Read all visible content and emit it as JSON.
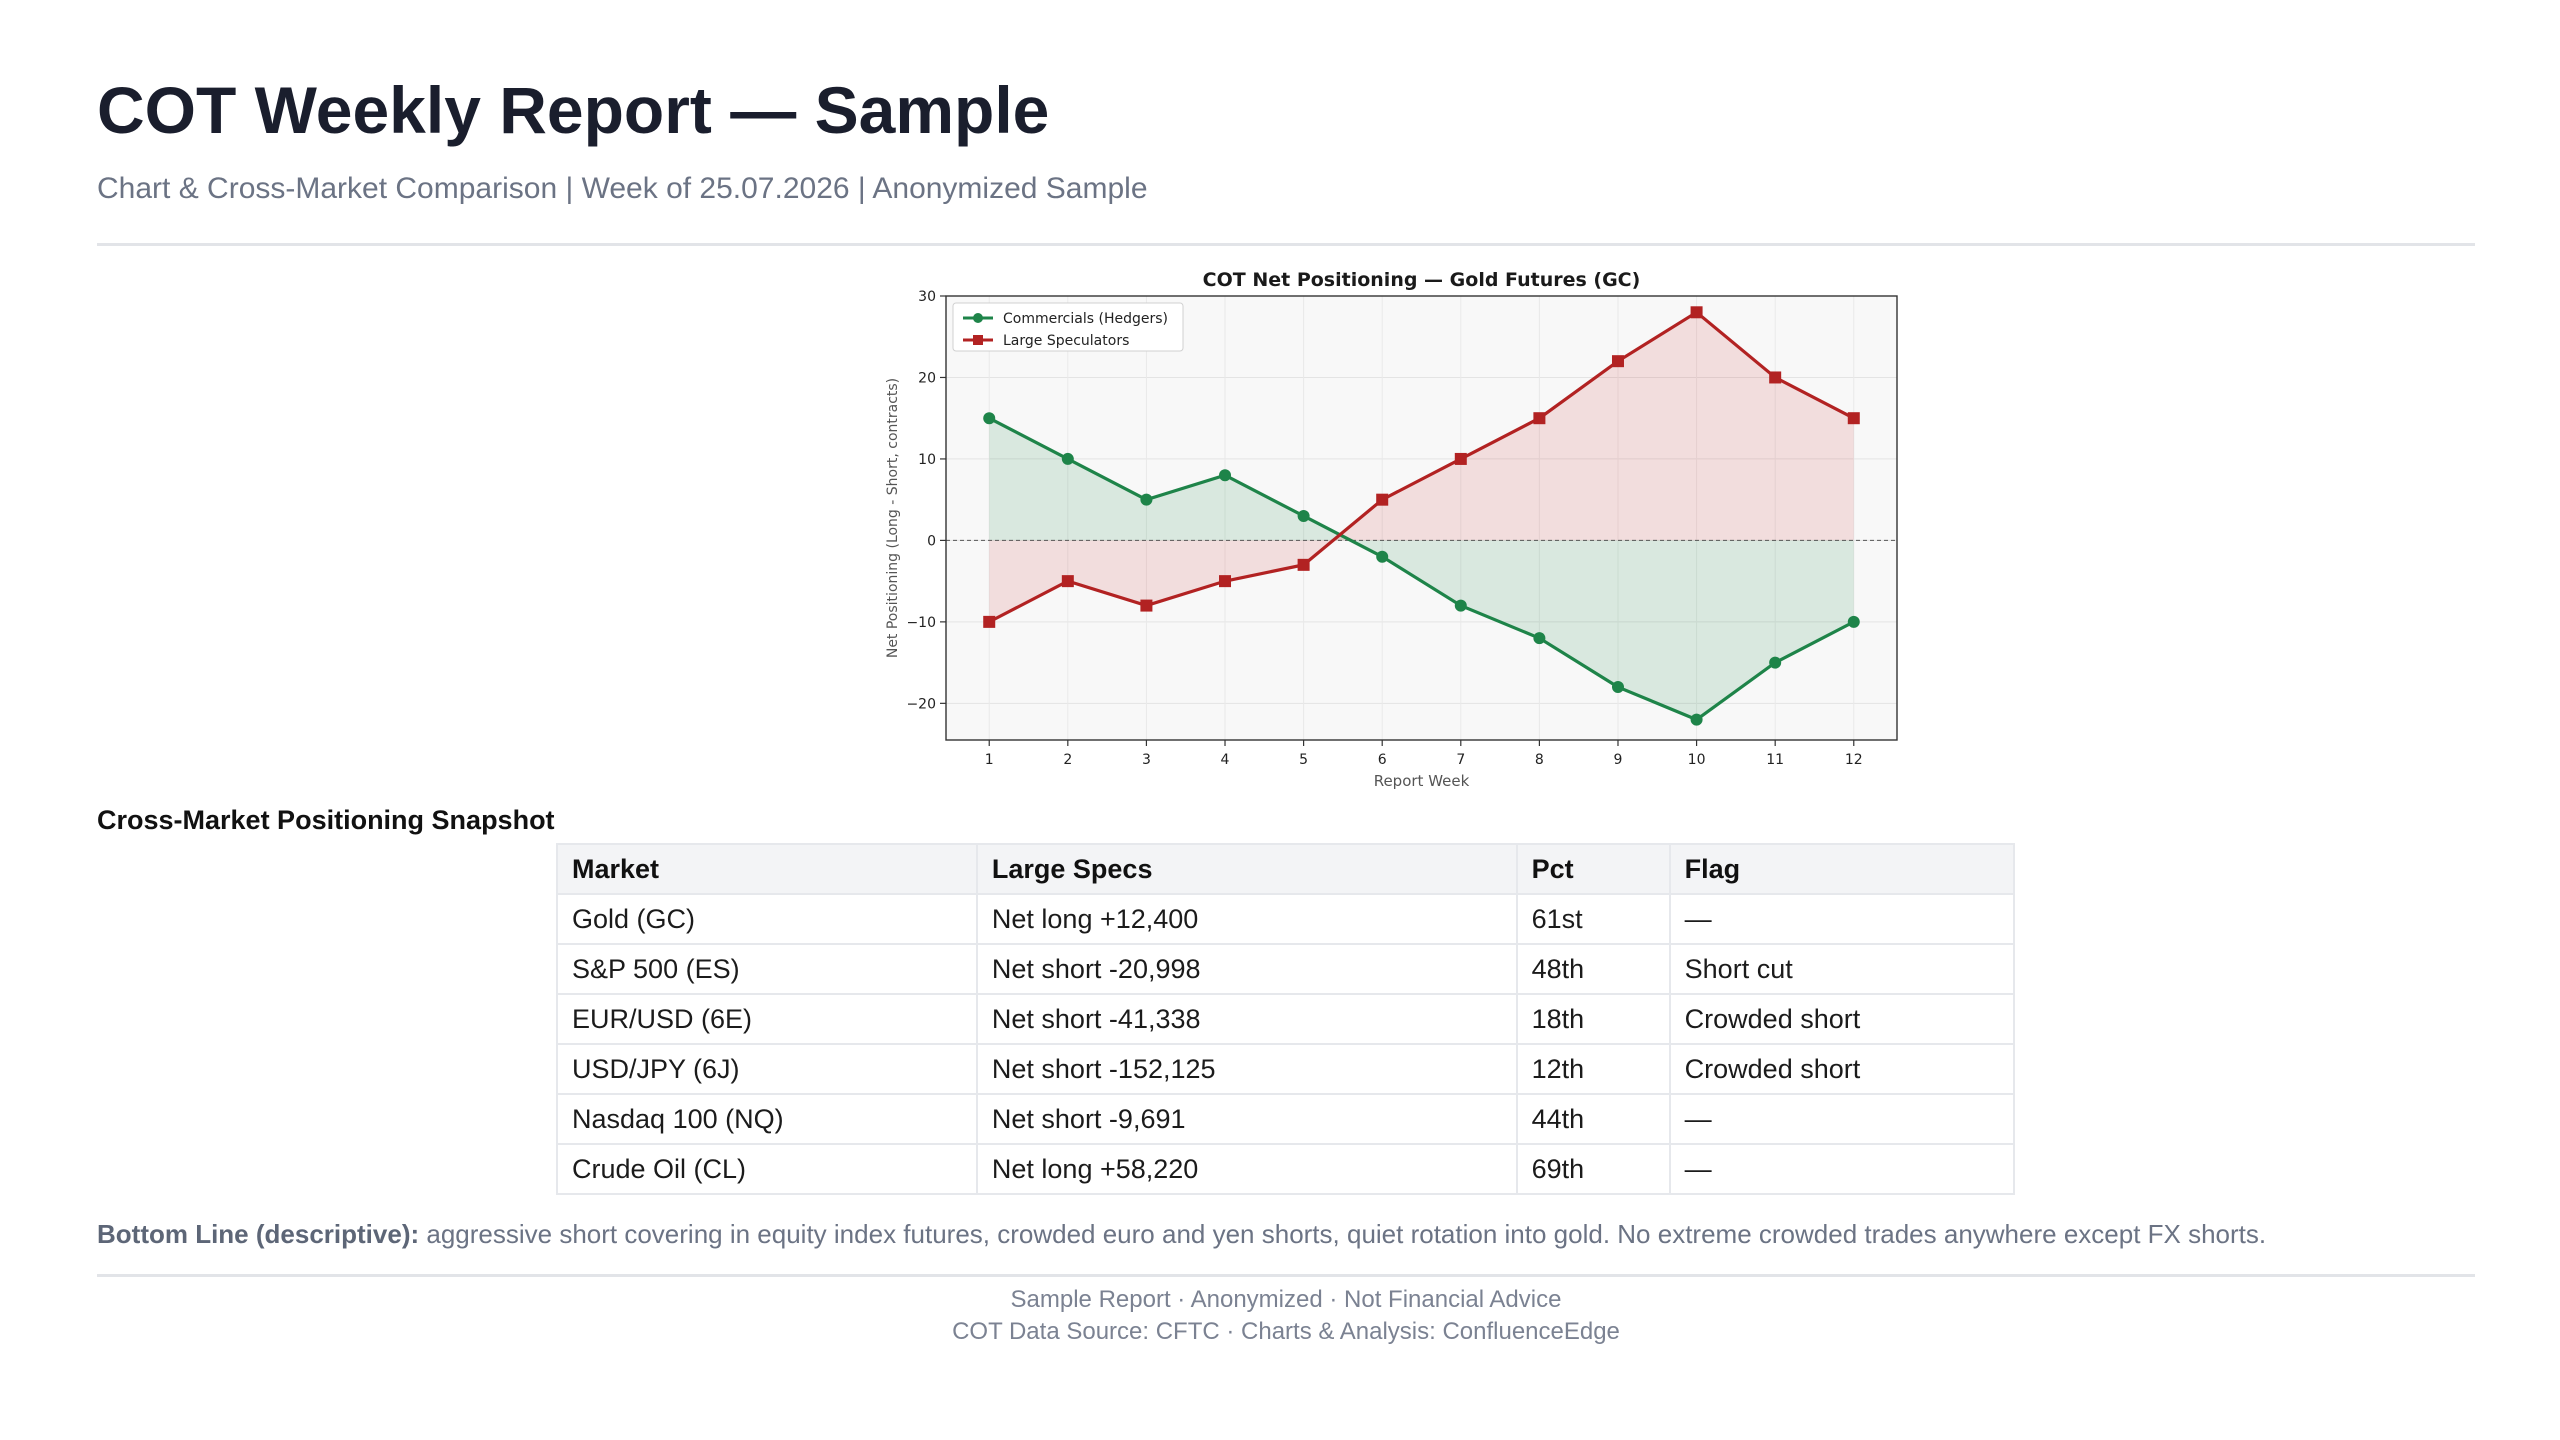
{
  "report": {
    "title": "COT Weekly Report — Sample",
    "subtitle": "Chart & Cross-Market Comparison | Week of 25.07.2026 | Anonymized Sample"
  },
  "chart_data": {
    "type": "line",
    "title": "COT Net Positioning — Gold Futures (GC)",
    "xlabel": "Report Week",
    "ylabel": "Net Positioning (Long - Short, contracts)",
    "x": [
      1,
      2,
      3,
      4,
      5,
      6,
      7,
      8,
      9,
      10,
      11,
      12
    ],
    "xlim": [
      0.45,
      12.55
    ],
    "ylim": [
      -24.5,
      30
    ],
    "yticks": [
      -20,
      -10,
      0,
      10,
      20,
      30
    ],
    "grid": true,
    "legend_position": "top-left",
    "zero_line": true,
    "fill_to_zero": true,
    "series": [
      {
        "name": "Commercials (Hedgers)",
        "color": "#1e8449",
        "marker": "circle",
        "values": [
          15,
          10,
          5,
          8,
          3,
          -2,
          -8,
          -12,
          -18,
          -22,
          -15,
          -10
        ]
      },
      {
        "name": "Large Speculators",
        "color": "#b22222",
        "marker": "square",
        "values": [
          -10,
          -5,
          -8,
          -5,
          -3,
          5,
          10,
          15,
          22,
          28,
          20,
          15
        ]
      }
    ]
  },
  "snapshot": {
    "title": "Cross-Market Positioning Snapshot",
    "headers": [
      "Market",
      "Large Specs",
      "Pct",
      "Flag"
    ],
    "rows": [
      [
        "Gold (GC)",
        "Net long +12,400",
        "61st",
        "—"
      ],
      [
        "S&P 500 (ES)",
        "Net short -20,998",
        "48th",
        "Short cut"
      ],
      [
        "EUR/USD (6E)",
        "Net short -41,338",
        "18th",
        "Crowded short"
      ],
      [
        "USD/JPY (6J)",
        "Net short -152,125",
        "12th",
        "Crowded short"
      ],
      [
        "Nasdaq 100 (NQ)",
        "Net short -9,691",
        "44th",
        "—"
      ],
      [
        "Crude Oil (CL)",
        "Net long +58,220",
        "69th",
        "—"
      ]
    ]
  },
  "bottom_line": {
    "label": "Bottom Line (descriptive):",
    "text": " aggressive short covering in equity index futures, crowded euro and yen shorts, quiet rotation into gold. No extreme crowded trades anywhere except FX shorts."
  },
  "footer": {
    "line1": "Sample Report · Anonymized · Not Financial Advice",
    "line2": "COT Data Source: CFTC · Charts & Analysis: ConfluenceEdge"
  }
}
